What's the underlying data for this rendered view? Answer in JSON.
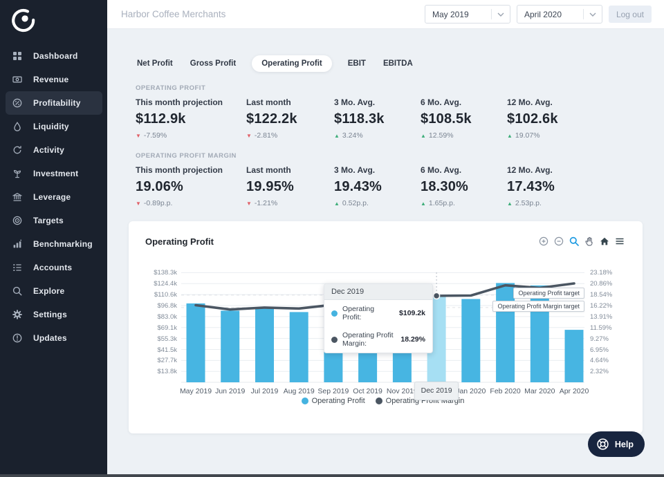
{
  "header": {
    "company": "Harbor Coffee Merchants",
    "period_start": "May 2019",
    "period_end": "April 2020",
    "logout_label": "Log out"
  },
  "sidebar": {
    "items": [
      {
        "icon": "dashboard",
        "label": "Dashboard",
        "active": false
      },
      {
        "icon": "revenue",
        "label": "Revenue",
        "active": false
      },
      {
        "icon": "profitability",
        "label": "Profitability",
        "active": true
      },
      {
        "icon": "liquidity",
        "label": "Liquidity",
        "active": false
      },
      {
        "icon": "activity",
        "label": "Activity",
        "active": false
      },
      {
        "icon": "investment",
        "label": "Investment",
        "active": false
      },
      {
        "icon": "leverage",
        "label": "Leverage",
        "active": false
      },
      {
        "icon": "targets",
        "label": "Targets",
        "active": false
      },
      {
        "icon": "benchmarking",
        "label": "Benchmarking",
        "active": false
      },
      {
        "icon": "accounts",
        "label": "Accounts",
        "active": false
      },
      {
        "icon": "explore",
        "label": "Explore",
        "active": false
      },
      {
        "icon": "settings",
        "label": "Settings",
        "active": false
      },
      {
        "icon": "updates",
        "label": "Updates",
        "active": false
      }
    ]
  },
  "tabs": [
    {
      "label": "Net Profit",
      "active": false
    },
    {
      "label": "Gross Profit",
      "active": false
    },
    {
      "label": "Operating Profit",
      "active": true
    },
    {
      "label": "EBIT",
      "active": false
    },
    {
      "label": "EBITDA",
      "active": false
    }
  ],
  "kpis": {
    "sections": [
      {
        "title": "OPERATING PROFIT",
        "metrics": [
          {
            "label": "This month projection",
            "value": "$112.9k",
            "delta": "-7.59%",
            "dir": "down"
          },
          {
            "label": "Last month",
            "value": "$122.2k",
            "delta": "-2.81%",
            "dir": "down"
          },
          {
            "label": "3 Mo. Avg.",
            "value": "$118.3k",
            "delta": "3.24%",
            "dir": "up"
          },
          {
            "label": "6 Mo. Avg.",
            "value": "$108.5k",
            "delta": "12.59%",
            "dir": "up"
          },
          {
            "label": "12 Mo. Avg.",
            "value": "$102.6k",
            "delta": "19.07%",
            "dir": "up"
          }
        ]
      },
      {
        "title": "OPERATING PROFIT MARGIN",
        "metrics": [
          {
            "label": "This month projection",
            "value": "19.06%",
            "delta": "-0.89p.p.",
            "dir": "down"
          },
          {
            "label": "Last month",
            "value": "19.95%",
            "delta": "-1.21%",
            "dir": "down"
          },
          {
            "label": "3 Mo. Avg.",
            "value": "19.43%",
            "delta": "0.52p.p.",
            "dir": "up"
          },
          {
            "label": "6 Mo. Avg.",
            "value": "18.30%",
            "delta": "1.65p.p.",
            "dir": "up"
          },
          {
            "label": "12 Mo. Avg.",
            "value": "17.43%",
            "delta": "2.53p.p.",
            "dir": "up"
          }
        ]
      }
    ]
  },
  "chart_card": {
    "title": "Operating Profit",
    "toolbar_icons": [
      "zoom-in",
      "zoom-out",
      "selection-zoom",
      "pan",
      "home",
      "menu"
    ]
  },
  "chart_data": {
    "type": "bar+line",
    "title": "Operating Profit",
    "categories": [
      "May 2019",
      "Jun 2019",
      "Jul 2019",
      "Aug 2019",
      "Sep 2019",
      "Oct 2019",
      "Nov 2019",
      "Dec 2019",
      "Jan 2020",
      "Feb 2020",
      "Mar 2020",
      "Apr 2020"
    ],
    "series": [
      {
        "name": "Operating Profit",
        "type": "bar",
        "axis": "left",
        "unit": "$k",
        "color": "#47b5e2",
        "values": [
          99.5,
          90.3,
          94.6,
          88.6,
          97.0,
          94.8,
          96.5,
          109.2,
          105.1,
          125.2,
          122.2,
          66.2
        ]
      },
      {
        "name": "Operating Profit Margin",
        "type": "line",
        "axis": "right",
        "unit": "%",
        "color": "#4b5662",
        "values": [
          16.3,
          15.4,
          15.8,
          15.6,
          16.4,
          17.1,
          17.8,
          18.29,
          18.35,
          20.5,
          19.95,
          20.9
        ]
      }
    ],
    "y_left": {
      "tick_labels": [
        "$138.3k",
        "$124.4k",
        "$110.6k",
        "$96.8k",
        "$83.0k",
        "$69.1k",
        "$55.3k",
        "$41.5k",
        "$27.7k",
        "$13.8k"
      ],
      "max": 138.3,
      "min": 13.8
    },
    "y_right": {
      "tick_labels": [
        "23.18%",
        "20.86%",
        "18.54%",
        "16.22%",
        "13.91%",
        "11.59%",
        "9.27%",
        "6.95%",
        "4.64%",
        "2.32%"
      ],
      "max": 23.18,
      "min": 2.32
    },
    "highlighted_category": "Dec 2019",
    "highlight_bar_color": "#a6dff3",
    "annotations": [
      {
        "label": "Operating Profit target",
        "axis": "left",
        "value": 110
      },
      {
        "label": "Operating Profit Margin target",
        "axis": "right",
        "value": 15.8
      }
    ],
    "tooltip": {
      "title": "Dec 2019",
      "rows": [
        {
          "label": "Operating Profit:",
          "value": "$109.2k",
          "color": "#45b3e0"
        },
        {
          "label": "Operating Profit Margin:",
          "value": "18.29%",
          "color": "#4b5662"
        }
      ]
    },
    "legend": [
      {
        "label": "Operating Profit",
        "color": "#45b3e0"
      },
      {
        "label": "Operating Profit Margin",
        "color": "#4b5662"
      }
    ],
    "grid": true,
    "legend_position": "bottom"
  },
  "help": {
    "label": "Help"
  },
  "colors": {
    "accent_blue": "#47b5e2",
    "line_dark": "#4b5662",
    "up_green": "#3fae7a",
    "down_red": "#e06068",
    "sidebar_bg": "#1a212d"
  }
}
